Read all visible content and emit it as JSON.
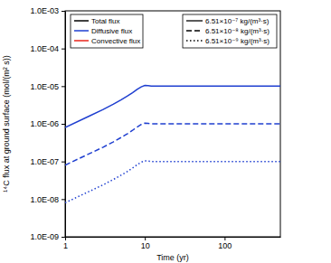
{
  "chart_data": {
    "type": "line",
    "log": true,
    "x_label": "Time (yr)",
    "y_label": "¹⁴C flux at ground surface (mol/(m² s))",
    "xlim": [
      1,
      500
    ],
    "xticks": [
      1,
      10,
      100
    ],
    "ylim": [
      1e-09,
      0.001
    ],
    "yticks": [
      {
        "value": 1e-09,
        "label": "1.0E-09"
      },
      {
        "value": 1e-08,
        "label": "1.0E-08"
      },
      {
        "value": 1e-07,
        "label": "1.0E-07"
      },
      {
        "value": 1e-06,
        "label": "1.0E-06"
      },
      {
        "value": 1e-05,
        "label": "1.0E-05"
      },
      {
        "value": 0.0001,
        "label": "1.0E-04"
      },
      {
        "value": 0.001,
        "label": "1.0E-03"
      }
    ],
    "flux_types": [
      {
        "name": "Total flux",
        "color": "#000000"
      },
      {
        "name": "Diffusive flux",
        "color": "#1f3fd0"
      },
      {
        "name": "Convective flux",
        "color": "#e8241b"
      }
    ],
    "x": [
      1,
      2,
      3,
      4,
      5,
      6,
      7,
      8,
      9,
      10,
      11,
      12,
      15,
      20,
      50,
      100,
      200,
      500
    ],
    "series": [
      {
        "name": "6.51×10⁻⁷ kg/(m³·s)",
        "color": "#1f3fd0",
        "line_style": "solid",
        "values": [
          8e-07,
          1.6e-06,
          2.4e-06,
          3.3e-06,
          4.3e-06,
          5.4e-06,
          6.7e-06,
          8.2e-06,
          9.6e-06,
          1.04e-05,
          1.03e-05,
          1e-05,
          1e-05,
          1e-05,
          1e-05,
          1e-05,
          1e-05,
          1e-05
        ]
      },
      {
        "name": "6.51×10⁻⁸ kg/(m³·s)",
        "color": "#1f3fd0",
        "line_style": "dashed",
        "values": [
          8e-08,
          1.6e-07,
          2.4e-07,
          3.3e-07,
          4.3e-07,
          5.4e-07,
          6.7e-07,
          8.2e-07,
          9.6e-07,
          1.04e-06,
          1.03e-06,
          1e-06,
          1e-06,
          1e-06,
          1e-06,
          1e-06,
          1e-06,
          1e-06
        ]
      },
      {
        "name": "6.51×10⁻⁹ kg/(m³·s)",
        "color": "#1f3fd0",
        "line_style": "dotted",
        "values": [
          8e-09,
          1.6e-08,
          2.4e-08,
          3.3e-08,
          4.3e-08,
          5.4e-08,
          6.7e-08,
          8.2e-08,
          9.6e-08,
          1.04e-07,
          1.03e-07,
          1e-07,
          1e-07,
          1e-07,
          1e-07,
          1e-07,
          1e-07,
          1e-07
        ]
      }
    ]
  }
}
